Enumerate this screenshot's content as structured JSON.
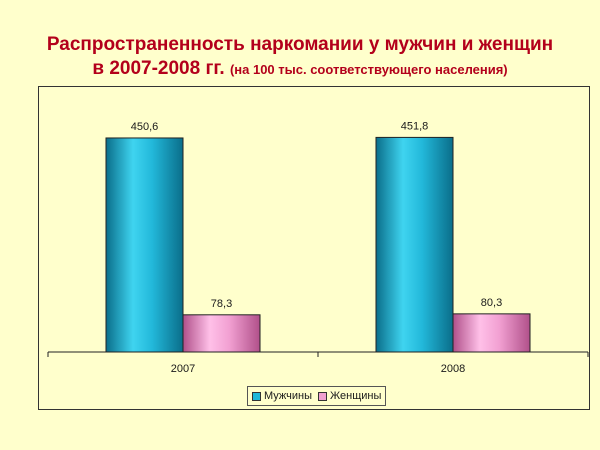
{
  "title": {
    "line1": "Распространенность наркомании у мужчин и женщин",
    "line2": "в 2007-2008 гг.",
    "note": "(на 100 тыс. соответствующего населения)"
  },
  "colors": {
    "men": "#1FB8D8",
    "women": "#F0A0D0"
  },
  "chart_data": {
    "type": "bar",
    "categories": [
      "2007",
      "2008"
    ],
    "series": [
      {
        "name": "Мужчины",
        "values": [
          450.6,
          451.8
        ],
        "labels": [
          "450,6",
          "451,8"
        ]
      },
      {
        "name": "Женщины",
        "values": [
          78.3,
          80.3
        ],
        "labels": [
          "78,3",
          "80,3"
        ]
      }
    ],
    "ylim": [
      0,
      560
    ],
    "legend": "bottom",
    "grid": false
  }
}
